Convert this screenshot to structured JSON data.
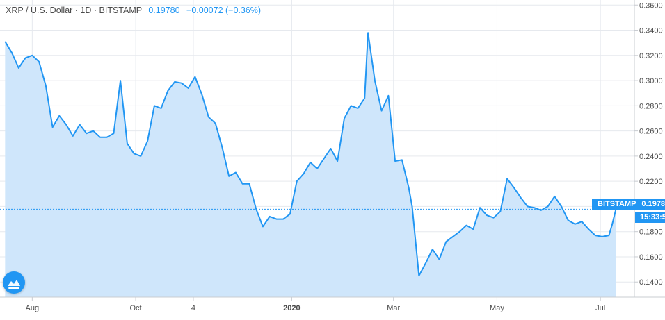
{
  "header": {
    "symbol": "XRP / U.S. Dollar · 1D · BITSTAMP",
    "last": "0.19780",
    "change": "−0.00072 (−0.36%)"
  },
  "badge": {
    "exchange": "BITSTAMP",
    "price": "0.1978",
    "countdown": "15:33:5"
  },
  "colors": {
    "line": "#2196f3",
    "fill": "#cfe6fb",
    "grid": "#e6e9ee",
    "text": "#4a4a4a"
  },
  "logo_icon": "tradingview-logo-icon",
  "chart_data": {
    "type": "area",
    "title": "XRP / U.S. Dollar · 1D · BITSTAMP",
    "xlabel": "",
    "ylabel": "",
    "ylim": [
      0.128,
      0.364
    ],
    "y_ticks": [
      "0.3600",
      "0.3400",
      "0.3200",
      "0.3000",
      "0.2800",
      "0.2600",
      "0.2400",
      "0.2200",
      "0.2000",
      "0.1800",
      "0.1600",
      "0.1400"
    ],
    "x_ticks": [
      "Aug",
      "Oct",
      "4",
      "2020",
      "Mar",
      "May",
      "Jul"
    ],
    "grid": true,
    "last_value": 0.1978,
    "x": [
      "2019-07-16",
      "2019-07-20",
      "2019-07-24",
      "2019-07-28",
      "2019-08-01",
      "2019-08-05",
      "2019-08-09",
      "2019-08-13",
      "2019-08-17",
      "2019-08-21",
      "2019-08-25",
      "2019-08-29",
      "2019-09-02",
      "2019-09-06",
      "2019-09-10",
      "2019-09-14",
      "2019-09-18",
      "2019-09-22",
      "2019-09-26",
      "2019-09-30",
      "2019-10-04",
      "2019-10-08",
      "2019-10-12",
      "2019-10-16",
      "2019-10-20",
      "2019-10-24",
      "2019-10-28",
      "2019-11-01",
      "2019-11-05",
      "2019-11-09",
      "2019-11-13",
      "2019-11-17",
      "2019-11-21",
      "2019-11-25",
      "2019-11-29",
      "2019-12-03",
      "2019-12-07",
      "2019-12-11",
      "2019-12-15",
      "2019-12-19",
      "2019-12-23",
      "2019-12-27",
      "2019-12-31",
      "2020-01-04",
      "2020-01-08",
      "2020-01-12",
      "2020-01-16",
      "2020-01-20",
      "2020-01-24",
      "2020-01-28",
      "2020-02-01",
      "2020-02-05",
      "2020-02-09",
      "2020-02-13",
      "2020-02-15",
      "2020-02-19",
      "2020-02-23",
      "2020-02-27",
      "2020-03-02",
      "2020-03-06",
      "2020-03-10",
      "2020-03-12",
      "2020-03-16",
      "2020-03-20",
      "2020-03-24",
      "2020-03-28",
      "2020-04-01",
      "2020-04-05",
      "2020-04-09",
      "2020-04-13",
      "2020-04-17",
      "2020-04-21",
      "2020-04-25",
      "2020-04-29",
      "2020-05-03",
      "2020-05-07",
      "2020-05-11",
      "2020-05-15",
      "2020-05-19",
      "2020-05-23",
      "2020-05-27",
      "2020-05-31",
      "2020-06-04",
      "2020-06-08",
      "2020-06-12",
      "2020-06-16",
      "2020-06-20",
      "2020-06-24",
      "2020-06-28",
      "2020-07-02",
      "2020-07-06",
      "2020-07-08",
      "2020-07-10"
    ],
    "series": [
      {
        "values": [
          0.331,
          0.322,
          0.31,
          0.318,
          0.32,
          0.315,
          0.296,
          0.263,
          0.272,
          0.265,
          0.256,
          0.265,
          0.258,
          0.26,
          0.255,
          0.255,
          0.258,
          0.3,
          0.25,
          0.242,
          0.24,
          0.252,
          0.28,
          0.278,
          0.292,
          0.299,
          0.298,
          0.294,
          0.303,
          0.289,
          0.271,
          0.266,
          0.247,
          0.224,
          0.227,
          0.218,
          0.218,
          0.198,
          0.184,
          0.192,
          0.19,
          0.19,
          0.194,
          0.22,
          0.226,
          0.235,
          0.23,
          0.238,
          0.246,
          0.236,
          0.27,
          0.28,
          0.278,
          0.286,
          0.338,
          0.3,
          0.276,
          0.288,
          0.236,
          0.237,
          0.215,
          0.2,
          0.145,
          0.155,
          0.166,
          0.158,
          0.172,
          0.176,
          0.18,
          0.185,
          0.182,
          0.199,
          0.193,
          0.191,
          0.196,
          0.222,
          0.215,
          0.207,
          0.2,
          0.199,
          0.197,
          0.2,
          0.208,
          0.2,
          0.189,
          0.186,
          0.188,
          0.182,
          0.177,
          0.176,
          0.177,
          0.186,
          0.197
        ]
      }
    ]
  }
}
